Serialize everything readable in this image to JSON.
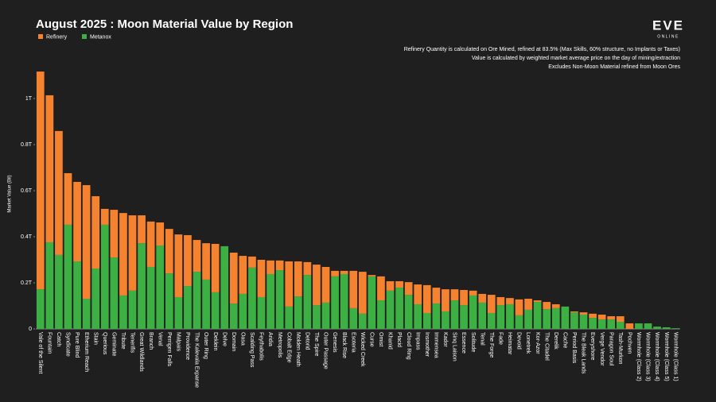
{
  "chart_data": {
    "type": "stacked_bar",
    "title": "August 2025 : Moon Material Value by Region",
    "notes": [
      "Refinery Quantity is calculated on Ore Mined, refined at 83.5% (Max Skills, 60% structure, no Implants or Taxes)",
      "Value is calculated by weighted market average price on the day of mining/extraction",
      "Excludes Non-Moon Material refined from Moon Ores"
    ],
    "logo": "EVE",
    "logo_sub": "ONLINE",
    "y_label": "Market Value (Bil)",
    "legend": "top-left",
    "categories": [
      "Vale of the Silent",
      "Fountain",
      "Catch",
      "Syndicate",
      "Pure Blind",
      "Etherium Reach",
      "Stain",
      "Querious",
      "Geminate",
      "Tribute",
      "Tenerifis",
      "Great Wildlands",
      "Branch",
      "Venal",
      "Perrigen Falls",
      "Malpais",
      "Providence",
      "The Kalevala Expanse",
      "Outer Ring",
      "Deklein",
      "Delve",
      "Domain",
      "Oasa",
      "Scalding Pass",
      "Feythabolis",
      "Aridia",
      "Metropolis",
      "Cobalt Edge",
      "Molden Heath",
      "Detorid",
      "The Spire",
      "Outer Passage",
      "Genesis",
      "Black Rise",
      "Esoteria",
      "Wicked Creek",
      "Curse",
      "Omist",
      "Khanid",
      "Placid",
      "Cloud Ring",
      "Impass",
      "Insmother",
      "Immensea",
      "Kador",
      "Sinq Laison",
      "Essence",
      "Solitude",
      "Tenal",
      "The Forge",
      "Fade",
      "Heimatar",
      "Devoid",
      "Lonetrek",
      "Kor-Azor",
      "The Citadel",
      "Derelik",
      "Cache",
      "Period Basis",
      "The Bleak Lands",
      "Everyshore",
      "Verge Vendor",
      "Paragon Soul",
      "Tash-Murkon",
      "Pochven",
      "Wormhole (Class 2)",
      "Wormhole (Class 3)",
      "Wormhole (Class 4)",
      "Wormhole (Class 5)",
      "Wormhole (Class 1)"
    ],
    "series": [
      {
        "name": "Refinery",
        "color": "#f5822f",
        "values": [
          0.945,
          0.638,
          0.538,
          0.224,
          0.345,
          0.493,
          0.314,
          0.069,
          0.207,
          0.358,
          0.327,
          0.121,
          0.197,
          0.1,
          0.193,
          0.272,
          0.221,
          0.138,
          0.158,
          0.21,
          0,
          0.221,
          0.165,
          0.048,
          0.162,
          0.059,
          0.042,
          0.196,
          0.152,
          0.056,
          0.176,
          0.155,
          0.024,
          0.014,
          0.162,
          0.182,
          0.006,
          0.104,
          0.041,
          0.028,
          0.055,
          0.086,
          0.121,
          0.069,
          0.096,
          0.048,
          0.066,
          0.021,
          0.038,
          0.079,
          0.035,
          0.027,
          0.069,
          0.048,
          0.007,
          0.031,
          0.017,
          0,
          0.004,
          0.01,
          0.018,
          0.021,
          0.014,
          0.024,
          0.024,
          0,
          0,
          0,
          0,
          0
        ]
      },
      {
        "name": "Metanox",
        "color": "#3cb043",
        "values": [
          0.172,
          0.376,
          0.321,
          0.452,
          0.293,
          0.131,
          0.262,
          0.452,
          0.31,
          0.145,
          0.166,
          0.372,
          0.269,
          0.362,
          0.241,
          0.138,
          0.186,
          0.248,
          0.214,
          0.159,
          0.359,
          0.11,
          0.152,
          0.266,
          0.138,
          0.238,
          0.255,
          0.097,
          0.141,
          0.234,
          0.103,
          0.114,
          0.228,
          0.238,
          0.09,
          0.066,
          0.228,
          0.124,
          0.166,
          0.179,
          0.148,
          0.107,
          0.069,
          0.11,
          0.076,
          0.124,
          0.103,
          0.145,
          0.114,
          0.069,
          0.103,
          0.107,
          0.059,
          0.083,
          0.117,
          0.086,
          0.09,
          0.097,
          0.072,
          0.062,
          0.048,
          0.041,
          0.041,
          0.031,
          0,
          0.024,
          0.024,
          0.01,
          0.007,
          0.003
        ]
      }
    ],
    "ylim": [
      0,
      1.15
    ],
    "yticks": [
      0,
      {
        "value": 0.2,
        "label": "0.2T"
      },
      {
        "value": 0.4,
        "label": "0.4T"
      },
      {
        "value": 0.6,
        "label": "0.6T"
      },
      {
        "value": 0.8,
        "label": "0.8T"
      },
      {
        "value": 1,
        "label": "1T"
      }
    ],
    "grid": false
  }
}
